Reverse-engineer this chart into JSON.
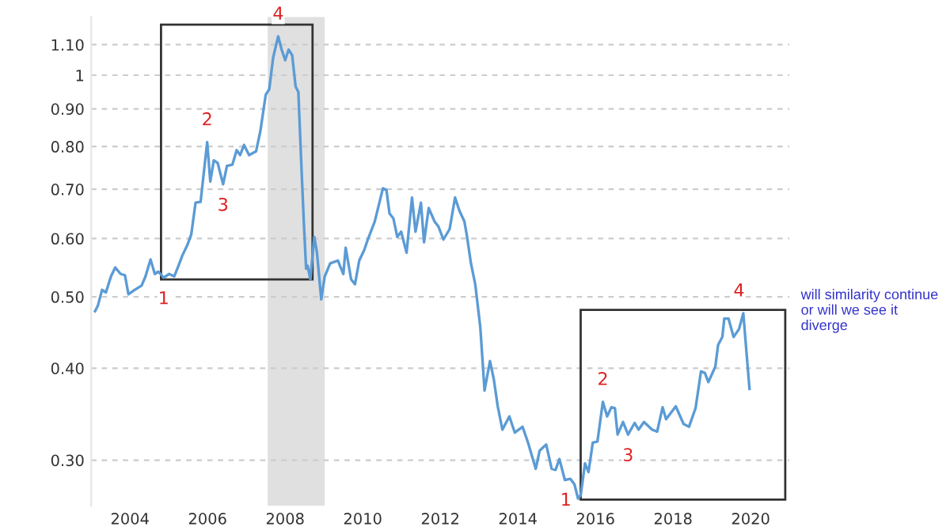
{
  "chart_data": {
    "type": "line",
    "series": [
      {
        "color": "#5b9bd5",
        "x": [
          2003.1,
          2003.17,
          2003.28,
          2003.38,
          2003.51,
          2003.62,
          2003.76,
          2003.87,
          2003.96,
          2004.12,
          2004.3,
          2004.4,
          2004.53,
          2004.64,
          2004.73,
          2004.87,
          2005.01,
          2005.14,
          2005.25,
          2005.35,
          2005.48,
          2005.58,
          2005.69,
          2005.82,
          2005.99,
          2006.07,
          2006.16,
          2006.26,
          2006.4,
          2006.5,
          2006.64,
          2006.75,
          2006.84,
          2006.94,
          2007.07,
          2007.25,
          2007.36,
          2007.5,
          2007.59,
          2007.69,
          2007.82,
          2007.91,
          2008.0,
          2008.09,
          2008.18,
          2008.27,
          2008.34,
          2008.41,
          2008.48,
          2008.54,
          2008.58,
          2008.65,
          2008.75,
          2008.82,
          2008.93,
          2009.02,
          2009.16,
          2009.36,
          2009.5,
          2009.56,
          2009.7,
          2009.8,
          2009.91,
          2010.04,
          2010.13,
          2010.31,
          2010.52,
          2010.61,
          2010.69,
          2010.79,
          2010.89,
          2010.99,
          2011.13,
          2011.27,
          2011.36,
          2011.5,
          2011.58,
          2011.7,
          2011.85,
          2011.95,
          2012.08,
          2012.24,
          2012.38,
          2012.49,
          2012.62,
          2012.69,
          2012.79,
          2012.9,
          2013.03,
          2013.14,
          2013.28,
          2013.38,
          2013.48,
          2013.6,
          2013.78,
          2013.92,
          2014.12,
          2014.26,
          2014.46,
          2014.56,
          2014.73,
          2014.87,
          2014.97,
          2015.07,
          2015.21,
          2015.35,
          2015.46,
          2015.55,
          2015.62,
          2015.73,
          2015.82,
          2015.93,
          2016.05,
          2016.19,
          2016.3,
          2016.41,
          2016.5,
          2016.57,
          2016.71,
          2016.84,
          2017.01,
          2017.11,
          2017.25,
          2017.46,
          2017.59,
          2017.73,
          2017.82,
          2018.07,
          2018.27,
          2018.41,
          2018.58,
          2018.72,
          2018.82,
          2018.91,
          2019.09,
          2019.16,
          2019.27,
          2019.32,
          2019.43,
          2019.56,
          2019.7,
          2019.81,
          2019.97
        ],
        "values": [
          0.478,
          0.486,
          0.511,
          0.507,
          0.533,
          0.548,
          0.537,
          0.535,
          0.504,
          0.511,
          0.518,
          0.533,
          0.562,
          0.537,
          0.541,
          0.531,
          0.537,
          0.533,
          0.551,
          0.569,
          0.588,
          0.608,
          0.671,
          0.673,
          0.811,
          0.717,
          0.766,
          0.76,
          0.711,
          0.753,
          0.756,
          0.791,
          0.779,
          0.804,
          0.779,
          0.788,
          0.839,
          0.941,
          0.957,
          1.056,
          1.129,
          1.083,
          1.048,
          1.083,
          1.065,
          0.965,
          0.949,
          0.772,
          0.633,
          0.546,
          0.551,
          0.528,
          0.603,
          0.574,
          0.496,
          0.533,
          0.555,
          0.56,
          0.537,
          0.583,
          0.528,
          0.52,
          0.56,
          0.579,
          0.598,
          0.633,
          0.702,
          0.699,
          0.649,
          0.639,
          0.603,
          0.613,
          0.574,
          0.682,
          0.613,
          0.671,
          0.593,
          0.66,
          0.633,
          0.623,
          0.598,
          0.618,
          0.682,
          0.655,
          0.633,
          0.603,
          0.555,
          0.52,
          0.455,
          0.373,
          0.409,
          0.386,
          0.355,
          0.33,
          0.344,
          0.327,
          0.333,
          0.317,
          0.292,
          0.309,
          0.315,
          0.292,
          0.291,
          0.301,
          0.282,
          0.283,
          0.278,
          0.266,
          0.269,
          0.297,
          0.289,
          0.317,
          0.318,
          0.36,
          0.344,
          0.354,
          0.353,
          0.325,
          0.338,
          0.325,
          0.337,
          0.33,
          0.338,
          0.33,
          0.328,
          0.354,
          0.341,
          0.355,
          0.336,
          0.333,
          0.353,
          0.396,
          0.394,
          0.383,
          0.402,
          0.43,
          0.441,
          0.467,
          0.467,
          0.441,
          0.452,
          0.475,
          0.375
        ]
      }
    ],
    "annotations": [
      {
        "text": "1",
        "x": 2004.87,
        "y": 0.531
      },
      {
        "text": "2",
        "x": 2005.99,
        "y": 0.811
      },
      {
        "text": "3",
        "x": 2006.4,
        "y": 0.711
      },
      {
        "text": "4",
        "x": 2007.82,
        "y": 1.129
      },
      {
        "text": "1",
        "x": 2015.55,
        "y": 0.266
      },
      {
        "text": "2",
        "x": 2016.19,
        "y": 0.36
      },
      {
        "text": "3",
        "x": 2016.84,
        "y": 0.325
      },
      {
        "text": "4",
        "x": 2019.7,
        "y": 0.475
      },
      "will similarity continue\nor will we see it\ndiverge"
    ],
    "bands": [
      {
        "axis": "x",
        "from": 2007.55,
        "to": 2009.02,
        "color": "#e0e0e0"
      }
    ],
    "log": "y",
    "xlim": [
      2003,
      2021
    ],
    "ylim": [
      0.26,
      1.2
    ],
    "xticks": [
      2004,
      2006,
      2008,
      2010,
      2012,
      2014,
      2016,
      2018,
      2020
    ],
    "yticks": [
      {
        "value": 0.3,
        "label": "0.30"
      },
      {
        "value": 0.4,
        "label": "0.40"
      },
      {
        "value": 0.5,
        "label": "0.50"
      },
      {
        "value": 0.6,
        "label": "0.60"
      },
      {
        "value": 0.7,
        "label": "0.70"
      },
      {
        "value": 0.8,
        "label": "0.80"
      },
      {
        "value": 0.9,
        "label": "0.90"
      },
      1,
      {
        "value": 1.1,
        "label": "1.10"
      }
    ],
    "grid": "y",
    "line_style": "solid"
  }
}
